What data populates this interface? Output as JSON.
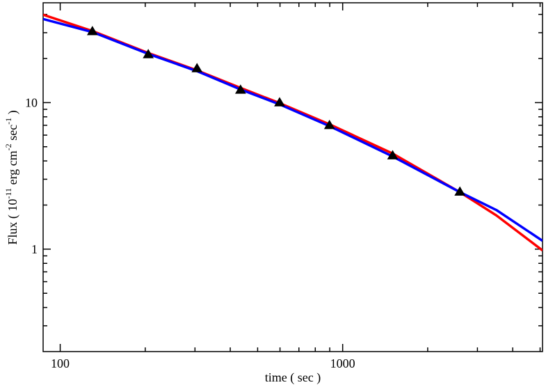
{
  "chart_data": {
    "type": "scatter",
    "xlabel": "time ( sec )",
    "ylabel_parts": [
      "Flux ( 10",
      "-11",
      " erg cm",
      "-2",
      " sec",
      "-1",
      " )"
    ],
    "xscale": "log",
    "yscale": "log",
    "xlim": [
      87,
      5100
    ],
    "ylim": [
      0.2,
      48
    ],
    "xticks": [
      100,
      1000
    ],
    "yticks": [
      1,
      10
    ],
    "xminorticks": [
      200,
      300,
      400,
      500,
      600,
      700,
      800,
      900,
      2000,
      3000,
      4000,
      5000
    ],
    "yminorticks": [
      0.3,
      0.4,
      0.5,
      0.6,
      0.7,
      0.8,
      0.9,
      2,
      3,
      4,
      5,
      6,
      7,
      8,
      9,
      20,
      30,
      40
    ],
    "series": [
      {
        "type": "line",
        "color": "#ff0000",
        "x": [
          87,
          130,
          205,
          305,
          435,
          600,
          900,
          1500,
          2600,
          3500,
          5100
        ],
        "values": [
          39.8,
          30.8,
          21.8,
          16.6,
          12.6,
          9.9,
          7.1,
          4.5,
          2.45,
          1.7,
          0.98
        ]
      },
      {
        "type": "line",
        "color": "#0000ff",
        "x": [
          87,
          130,
          205,
          305,
          435,
          600,
          900,
          1500,
          2600,
          3500,
          5100
        ],
        "values": [
          37.2,
          30.3,
          21.5,
          16.4,
          12.3,
          9.7,
          6.9,
          4.3,
          2.45,
          1.85,
          1.14
        ]
      },
      {
        "type": "scatter",
        "color": "#000000",
        "x": [
          130,
          205,
          305,
          435,
          598,
          898,
          1503,
          2600
        ],
        "values": [
          30.6,
          21.3,
          17.1,
          12.2,
          10,
          7.0,
          4.35,
          2.46
        ]
      }
    ]
  }
}
